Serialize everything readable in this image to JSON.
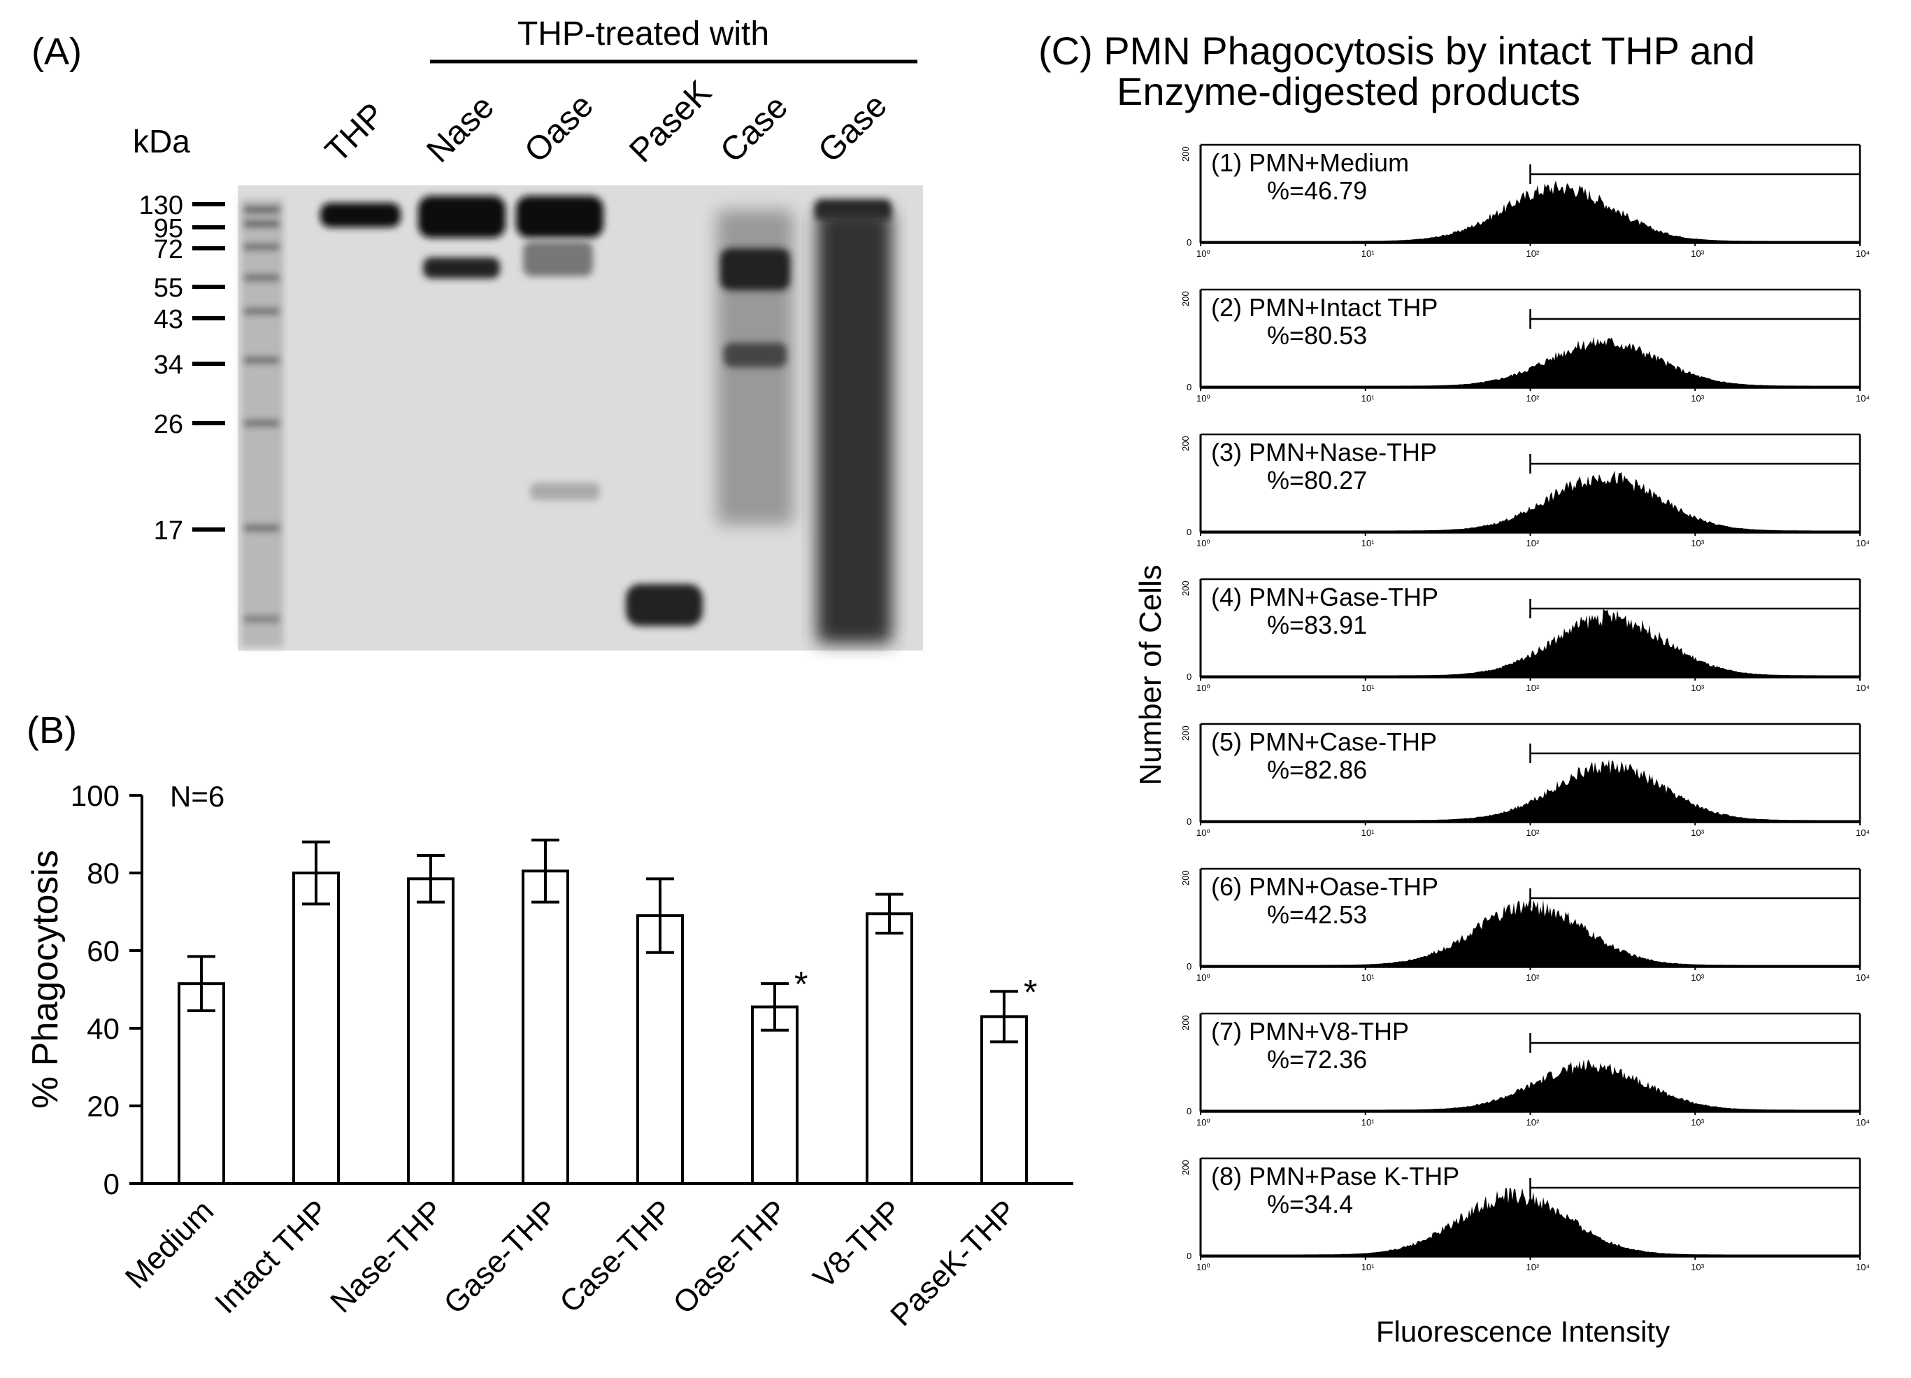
{
  "panel_a": {
    "label": "(A)",
    "header": "THP-treated with",
    "kda_label": "kDa",
    "lanes": [
      "THP",
      "Nase",
      "Oase",
      "PaseK",
      "Case",
      "Gase"
    ],
    "markers": [
      "130",
      "95",
      "72",
      "55",
      "43",
      "34",
      "26",
      "17"
    ]
  },
  "panel_b": {
    "label": "(B)",
    "n_label": "N=6",
    "chart_data": {
      "type": "bar",
      "categories": [
        "Medium",
        "Intact THP",
        "Nase-THP",
        "Gase-THP",
        "Case-THP",
        "Oase-THP",
        "V8-THP",
        "PaseK-THP"
      ],
      "values": [
        51.5,
        80,
        78.5,
        80.5,
        69,
        45.5,
        69.5,
        43
      ],
      "errors": [
        7,
        8,
        6,
        8,
        9.5,
        6,
        5,
        6.5
      ],
      "significant": [
        false,
        false,
        false,
        false,
        false,
        true,
        false,
        true
      ],
      "sig_mark": "*",
      "ylabel": "% Phagocytosis",
      "xlabel": "",
      "ylim": [
        0,
        100
      ],
      "yticks": [
        "0",
        "20",
        "40",
        "60",
        "80",
        "100"
      ]
    }
  },
  "panel_c": {
    "title_line1": "(C) PMN Phagocytosis by intact THP and",
    "title_line2": "Enzyme-digested products",
    "ylabel": "Number of Cells",
    "xlabel": "Fluorescence Intensity",
    "chart_data": {
      "type": "area",
      "x_scale": "log",
      "xlim": [
        1,
        10000
      ],
      "xticks": [
        "10⁰",
        "10¹",
        "10²",
        "10³",
        "10⁴"
      ],
      "ytick_top": "200",
      "ytick_bottom": "0",
      "gate_start": 100,
      "series": [
        {
          "label": "(1) PMN+Medium",
          "percent": "%=46.79",
          "peak": 150,
          "peak_height": 0.55
        },
        {
          "label": "(2) PMN+Intact THP",
          "percent": "%=80.53",
          "peak": 280,
          "peak_height": 0.45
        },
        {
          "label": "(3) PMN+Nase-THP",
          "percent": "%=80.27",
          "peak": 280,
          "peak_height": 0.55
        },
        {
          "label": "(4) PMN+Gase-THP",
          "percent": "%=83.91",
          "peak": 300,
          "peak_height": 0.6
        },
        {
          "label": "(5) PMN+Case-THP",
          "percent": "%=82.86",
          "peak": 300,
          "peak_height": 0.55
        },
        {
          "label": "(6) PMN+Oase-THP",
          "percent": "%=42.53",
          "peak": 100,
          "peak_height": 0.6
        },
        {
          "label": "(7) PMN+V8-THP",
          "percent": "%=72.36",
          "peak": 230,
          "peak_height": 0.45
        },
        {
          "label": "(8) PMN+Pase K-THP",
          "percent": "%=34.4",
          "peak": 80,
          "peak_height": 0.6
        }
      ]
    }
  }
}
